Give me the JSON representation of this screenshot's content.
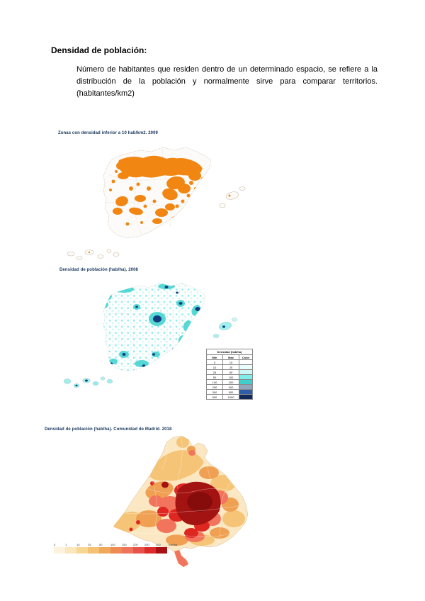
{
  "heading": "Densidad de población:",
  "paragraph": "Número de habitantes que residen dentro de un determinado espacio, se refiere a la distribución de la población y normalmente sirve para comparar territorios. (habitantes/km2)",
  "maps": [
    {
      "title": "Zonas con densidad inferior a 10 hab/km2. 2009",
      "kind": "map-spain-low-density"
    },
    {
      "title": "Densidad de población (hab/ha). 2008",
      "kind": "map-spain-density",
      "legend": {
        "title": "Densidad (hab/ha)",
        "columns": [
          "Min",
          "Max",
          "Color"
        ],
        "rows": [
          {
            "min": "0",
            "max": "10",
            "color": "#FFFFFF"
          },
          {
            "min": "10",
            "max": "25",
            "color": "#EAFDFC"
          },
          {
            "min": "25",
            "max": "50",
            "color": "#CFF7F5"
          },
          {
            "min": "50",
            "max": "100",
            "color": "#7FEDEA"
          },
          {
            "min": "100",
            "max": "200",
            "color": "#3ECFCC"
          },
          {
            "min": "200",
            "max": "300",
            "color": "#8FA6BE"
          },
          {
            "min": "300",
            "max": "500",
            "color": "#2F5EA8"
          },
          {
            "min": "500",
            "max": "1000",
            "color": "#122B5C"
          }
        ]
      }
    },
    {
      "title": "Densidad de población (hab/ha). Comunidad de Madrid. 2018",
      "kind": "map-madrid-choropleth",
      "scale": {
        "ticks": [
          "0",
          "1",
          "10",
          "25",
          "50",
          "100",
          "150",
          "200",
          "250",
          "300"
        ],
        "unit_label": "hab/ha",
        "colors": [
          "#FDF3DC",
          "#FBE7BC",
          "#F8D795",
          "#F4C272",
          "#F0A95A",
          "#ED8B52",
          "#F0735B",
          "#E8524A",
          "#DC2B28",
          "#A81014"
        ]
      }
    }
  ],
  "colors": {
    "title_navy": "#17365D",
    "map1_orange": "#F28613",
    "map2_cyan": "#8FECEA",
    "map2_teal": "#49D5D2",
    "map2_navy": "#123C7E",
    "map3_cream": "#FBE8C2",
    "map3_core": "#860C0C"
  }
}
